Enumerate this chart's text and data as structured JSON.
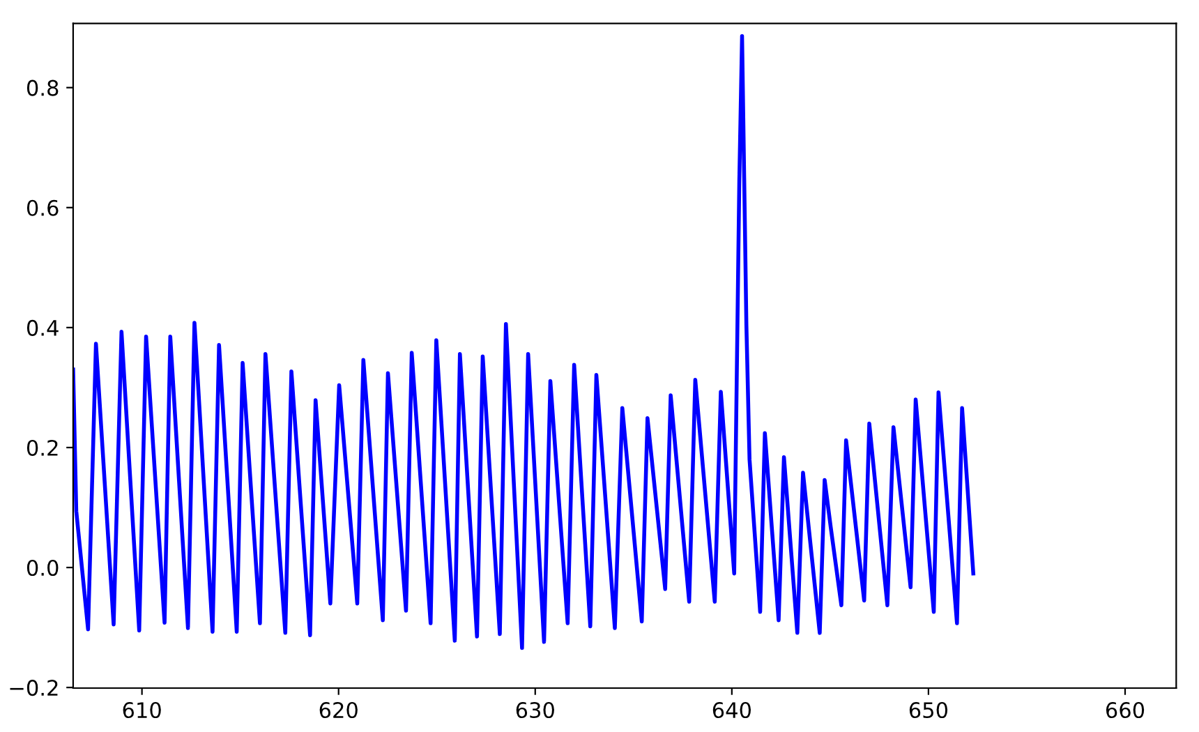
{
  "chart_data": {
    "type": "line",
    "x": [
      606.5,
      606.66,
      607.26,
      607.66,
      608.56,
      608.96,
      609.86,
      610.21,
      611.15,
      611.44,
      612.34,
      612.67,
      613.59,
      613.92,
      614.82,
      615.12,
      616.0,
      616.28,
      617.29,
      617.6,
      618.55,
      618.83,
      619.58,
      620.03,
      620.95,
      621.26,
      622.25,
      622.51,
      623.43,
      623.72,
      624.68,
      624.97,
      625.91,
      626.17,
      627.04,
      627.33,
      628.2,
      628.51,
      629.33,
      629.64,
      630.45,
      630.77,
      631.65,
      631.98,
      632.8,
      633.11,
      634.05,
      634.43,
      635.42,
      635.71,
      636.61,
      636.89,
      637.83,
      638.14,
      639.13,
      639.44,
      640.12,
      640.38,
      640.52,
      640.74,
      640.9,
      641.44,
      641.68,
      642.38,
      642.65,
      643.33,
      643.62,
      644.47,
      644.72,
      645.03,
      645.57,
      645.81,
      646.73,
      646.99,
      647.91,
      648.22,
      649.09,
      649.35,
      650.27,
      650.51,
      651.45,
      651.71,
      652.28
    ],
    "series": [
      {
        "color": "#0000ff",
        "values": [
          0.33,
          0.094,
          -0.103,
          0.373,
          -0.095,
          0.393,
          -0.105,
          0.385,
          -0.092,
          0.385,
          -0.101,
          0.408,
          -0.107,
          0.371,
          -0.107,
          0.341,
          -0.093,
          0.356,
          -0.109,
          0.327,
          -0.113,
          0.279,
          -0.06,
          0.304,
          -0.06,
          0.346,
          -0.088,
          0.324,
          -0.072,
          0.358,
          -0.093,
          0.379,
          -0.122,
          0.356,
          -0.115,
          0.352,
          -0.111,
          0.406,
          -0.134,
          0.356,
          -0.124,
          0.311,
          -0.093,
          0.338,
          -0.098,
          0.321,
          -0.101,
          0.266,
          -0.09,
          0.249,
          -0.036,
          0.287,
          -0.057,
          0.313,
          -0.057,
          0.293,
          -0.01,
          0.644,
          0.886,
          0.404,
          0.18,
          -0.074,
          0.224,
          -0.088,
          0.184,
          -0.109,
          0.158,
          -0.109,
          0.146,
          0.067,
          -0.063,
          0.212,
          -0.055,
          0.24,
          -0.063,
          0.234,
          -0.033,
          0.28,
          -0.074,
          0.292,
          -0.093,
          0.266,
          -0.01
        ]
      }
    ],
    "xlim": [
      606.5,
      662.6
    ],
    "ylim": [
      -0.201,
      0.907
    ],
    "xticks": [
      610,
      620,
      630,
      640,
      650,
      660
    ],
    "yticks": [
      {
        "value": -0.2,
        "label": "−0.2"
      },
      {
        "value": 0,
        "label": "0.0"
      },
      0.2,
      0.4,
      0.6,
      0.8
    ],
    "grid": false,
    "line_style": "solid"
  }
}
